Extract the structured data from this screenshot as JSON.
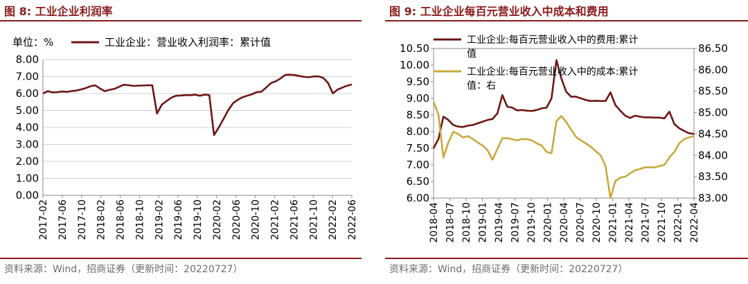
{
  "left_panel": {
    "figure_title": "图 8:  工业企业利润率",
    "source": "资料来源：Wind，招商证券（更新时间：20220727）"
  },
  "right_panel": {
    "figure_title": "图 9:  工业企业每百元营业收入中成本和费用",
    "source": "资料来源：Wind，招商证券（更新时间：20220727）"
  },
  "chart_data": [
    {
      "type": "line",
      "unit_label": "单位：%",
      "legend_position": "top",
      "grid": true,
      "ylim": [
        0,
        8
      ],
      "y_ticks": [
        "0.00",
        "1.00",
        "2.00",
        "3.00",
        "4.00",
        "5.00",
        "6.00",
        "7.00",
        "8.00"
      ],
      "x_tick_labels": [
        "2017-02",
        "2017-06",
        "2017-10",
        "2018-02",
        "2018-06",
        "2018-10",
        "2019-02",
        "2019-06",
        "2019-10",
        "2020-02",
        "2020-06",
        "2020-10",
        "2021-02",
        "2021-06",
        "2021-10",
        "2022-02",
        "2022-06"
      ],
      "colors": [
        "#6e1414"
      ],
      "series": [
        {
          "name": "工业企业：营业收入利润率：累计值",
          "values": [
            6.0,
            6.14,
            6.07,
            6.08,
            6.12,
            6.1,
            6.14,
            6.17,
            6.24,
            6.32,
            6.43,
            6.48,
            6.3,
            6.14,
            6.22,
            6.27,
            6.39,
            6.52,
            6.49,
            6.45,
            6.46,
            6.47,
            6.48,
            6.49,
            4.82,
            5.34,
            5.55,
            5.75,
            5.87,
            5.88,
            5.91,
            5.9,
            5.93,
            5.87,
            5.93,
            5.91,
            3.55,
            4.0,
            4.5,
            5.02,
            5.43,
            5.63,
            5.78,
            5.87,
            5.96,
            6.08,
            6.11,
            6.36,
            6.62,
            6.72,
            6.89,
            7.1,
            7.11,
            7.09,
            7.03,
            6.98,
            6.96,
            7.01,
            7.01,
            6.92,
            6.62,
            6.01,
            6.23,
            6.35,
            6.46,
            6.53
          ]
        }
      ]
    },
    {
      "type": "line",
      "legend_position": "top",
      "grid": false,
      "ylim": [
        6.0,
        10.5
      ],
      "y2lim": [
        83.0,
        86.5
      ],
      "y_ticks": [
        "6.00",
        "6.50",
        "7.00",
        "7.50",
        "8.00",
        "8.50",
        "9.00",
        "9.50",
        "10.00",
        "10.50"
      ],
      "y2_ticks": [
        "83.00",
        "83.50",
        "84.00",
        "84.50",
        "85.00",
        "85.50",
        "86.00",
        "86.50"
      ],
      "x_tick_labels": [
        "2018-04",
        "2018-07",
        "2018-10",
        "2019-01",
        "2019-04",
        "2019-07",
        "2019-10",
        "2020-01",
        "2020-04",
        "2020-07",
        "2020-10",
        "2021-01",
        "2021-04",
        "2021-07",
        "2021-10",
        "2022-01",
        "2022-04"
      ],
      "colors": [
        "#6e1414",
        "#c9a93a"
      ],
      "series": [
        {
          "name": "工业企业:每百元营业收入中的费用:累计值",
          "axis": "left",
          "values": [
            7.5,
            7.78,
            8.45,
            8.35,
            8.2,
            8.15,
            8.14,
            8.18,
            8.2,
            8.25,
            8.3,
            8.35,
            8.38,
            8.55,
            9.1,
            8.75,
            8.72,
            8.64,
            8.65,
            8.63,
            8.62,
            8.65,
            8.7,
            8.72,
            9.0,
            10.15,
            9.6,
            9.2,
            9.05,
            9.05,
            9.0,
            8.95,
            8.92,
            8.93,
            8.92,
            8.92,
            9.18,
            8.8,
            8.63,
            8.48,
            8.41,
            8.48,
            8.45,
            8.43,
            8.43,
            8.42,
            8.42,
            8.4,
            8.6,
            8.23,
            8.1,
            8.02,
            7.95,
            7.93
          ]
        },
        {
          "name": "工业企业:每百元营业收入中的成本:累计值：右",
          "axis": "right",
          "values": [
            85.25,
            84.95,
            83.95,
            84.3,
            84.55,
            84.5,
            84.42,
            84.45,
            84.38,
            84.3,
            84.23,
            84.12,
            83.9,
            84.15,
            84.4,
            84.4,
            84.38,
            84.35,
            84.38,
            84.38,
            84.35,
            84.28,
            84.23,
            84.08,
            84.05,
            84.8,
            84.92,
            84.78,
            84.6,
            84.43,
            84.35,
            84.28,
            84.2,
            84.1,
            84.0,
            83.75,
            83.0,
            83.4,
            83.48,
            83.5,
            83.58,
            83.65,
            83.68,
            83.72,
            83.72,
            83.72,
            83.75,
            83.78,
            83.95,
            84.08,
            84.28,
            84.38,
            84.42,
            84.45
          ]
        }
      ]
    }
  ]
}
